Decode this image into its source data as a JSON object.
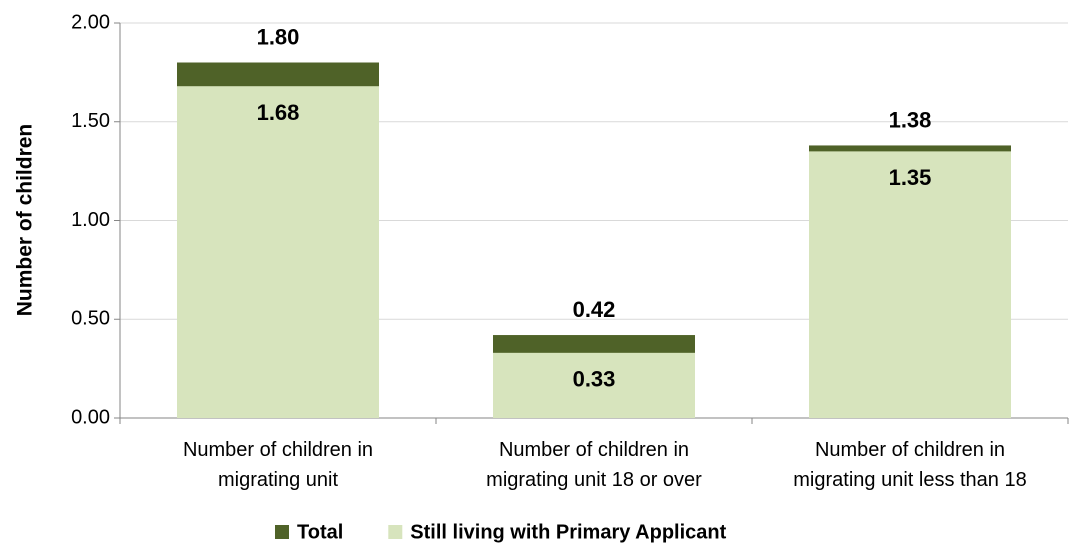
{
  "chart_data": {
    "type": "overlap-bar",
    "y_label": "Number of children",
    "categories": [
      "Number of children in migrating unit",
      "Number of children in migrating unit 18 or over",
      "Number of children in migrating unit less than 18"
    ],
    "series": [
      {
        "name": "Total",
        "color": "#4f6228",
        "values": [
          1.8,
          0.42,
          1.38
        ],
        "value_labels": [
          "1.80",
          "0.42",
          "1.38"
        ]
      },
      {
        "name": "Still living with Primary Applicant",
        "color": "#d7e4bd",
        "values": [
          1.68,
          0.33,
          1.35
        ],
        "value_labels": [
          "1.68",
          "0.33",
          "1.35"
        ]
      }
    ],
    "ylim": [
      0,
      2
    ],
    "yticks": [
      {
        "value": 0,
        "label": "0.00"
      },
      {
        "value": 0.5,
        "label": "0.50"
      },
      {
        "value": 1,
        "label": "1.00"
      },
      {
        "value": 1.5,
        "label": "1.50"
      },
      {
        "value": 2,
        "label": "2.00"
      }
    ],
    "grid": true
  }
}
